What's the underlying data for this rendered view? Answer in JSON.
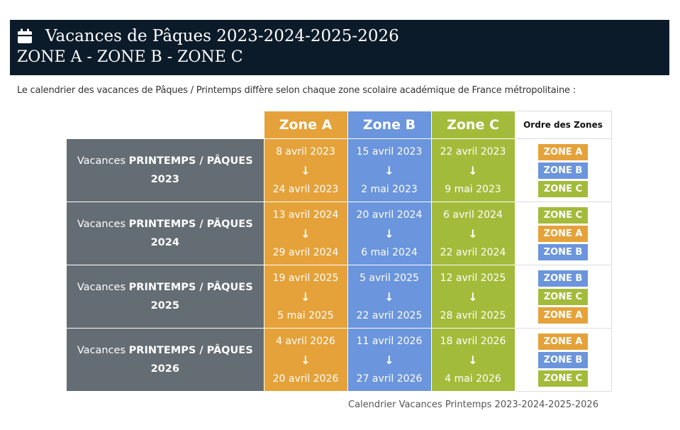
{
  "header": {
    "icon": "calendar-icon",
    "title_line1": "Vacances de Pâques 2023-2024-2025-2026",
    "title_line2": "ZONE A - ZONE B - ZONE C"
  },
  "intro": "Le calendrier des vacances de Pâques / Printemps diffère selon chaque zone scolaire académique de France métropolitaine :",
  "colors": {
    "zone_a": "#e5a23a",
    "zone_b": "#6b95dc",
    "zone_c": "#a3bb3a",
    "label_bg": "#646d73",
    "header_bg": "#0c1b2a"
  },
  "table": {
    "headers": {
      "zone_a": "Zone A",
      "zone_b": "Zone B",
      "zone_c": "Zone C",
      "order": "Ordre des Zones"
    },
    "label_prefix": "Vacances ",
    "label_bold": "PRINTEMPS / PÂQUES",
    "arrow": "↓",
    "rows": [
      {
        "year": "2023",
        "zone_a": {
          "start": "8 avril 2023",
          "end": "24 avril 2023"
        },
        "zone_b": {
          "start": "15 avril 2023",
          "end": "2 mai 2023"
        },
        "zone_c": {
          "start": "22 avril 2023",
          "end": "9 mai 2023"
        },
        "order": [
          "ZONE A",
          "ZONE B",
          "ZONE C"
        ]
      },
      {
        "year": "2024",
        "zone_a": {
          "start": "13 avril 2024",
          "end": "29 avril 2024"
        },
        "zone_b": {
          "start": "20 avril 2024",
          "end": "6 mai 2024"
        },
        "zone_c": {
          "start": "6 avril 2024",
          "end": "22 avril 2024"
        },
        "order": [
          "ZONE C",
          "ZONE A",
          "ZONE B"
        ]
      },
      {
        "year": "2025",
        "zone_a": {
          "start": "19 avril 2025",
          "end": "5 mai 2025"
        },
        "zone_b": {
          "start": "5 avril 2025",
          "end": "22 avril 2025"
        },
        "zone_c": {
          "start": "12 avril 2025",
          "end": "28 avril 2025"
        },
        "order": [
          "ZONE B",
          "ZONE C",
          "ZONE A"
        ]
      },
      {
        "year": "2026",
        "zone_a": {
          "start": "4 avril 2026",
          "end": "20 avril 2026"
        },
        "zone_b": {
          "start": "11 avril 2026",
          "end": "27 avril 2026"
        },
        "zone_c": {
          "start": "18 avril 2026",
          "end": "4 mai 2026"
        },
        "order": [
          "ZONE A",
          "ZONE B",
          "ZONE C"
        ]
      }
    ]
  },
  "caption": "Calendrier Vacances Printemps 2023-2024-2025-2026"
}
